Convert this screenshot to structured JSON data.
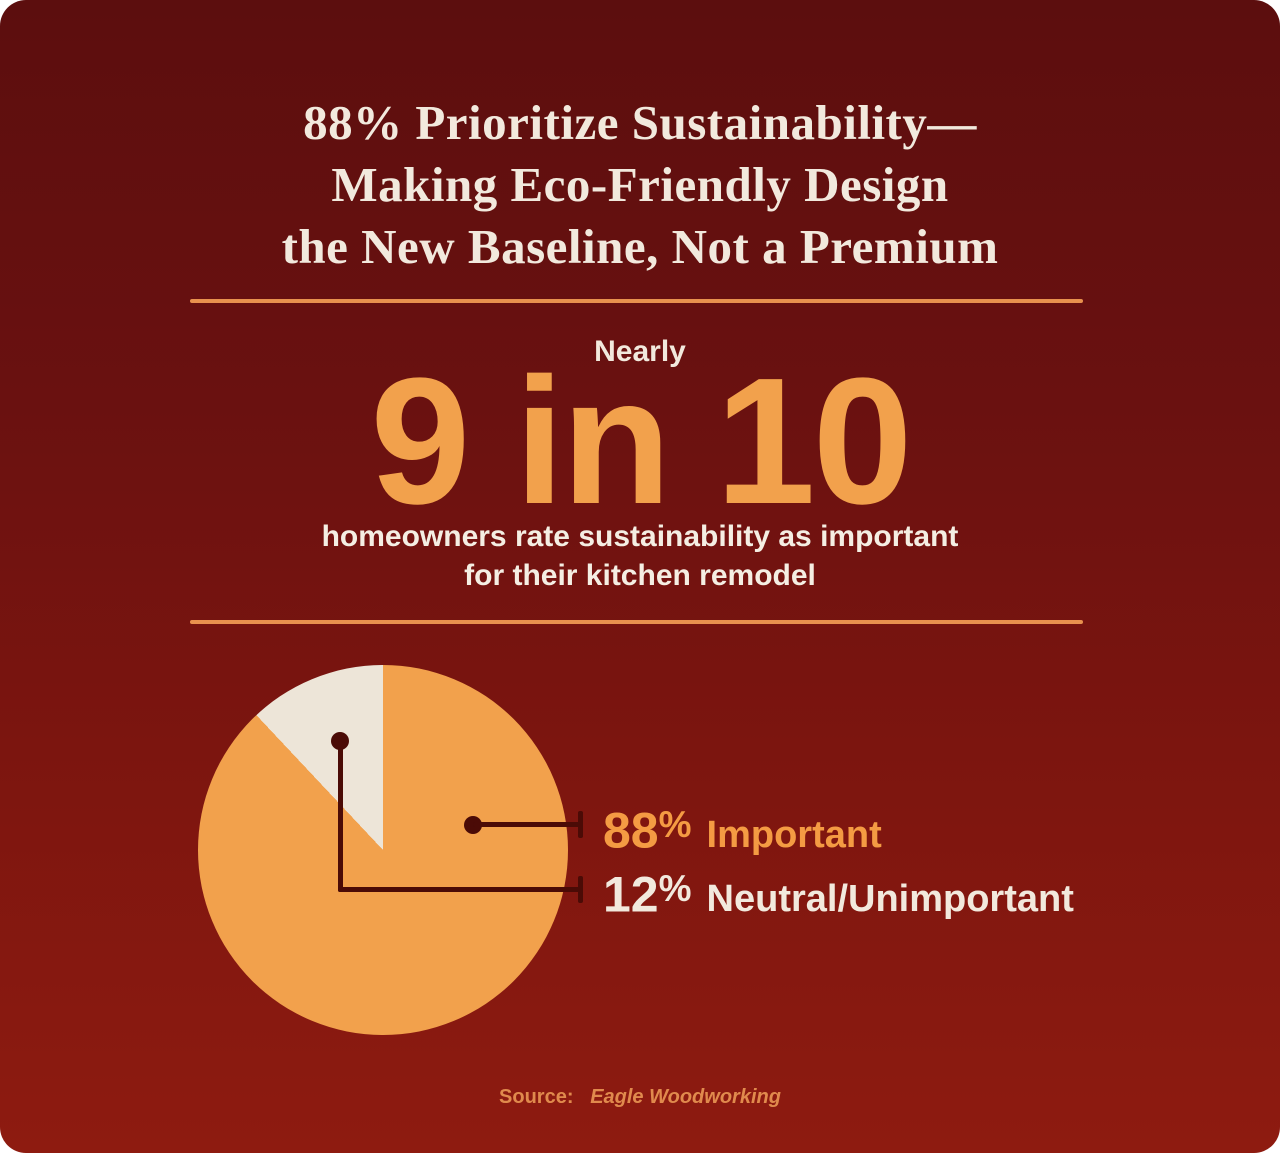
{
  "title": {
    "line1": "88% Prioritize Sustainability—",
    "line2": "Making Eco-Friendly Design",
    "line3": "the New Baseline, Not a Premium"
  },
  "stat": {
    "kicker": "Nearly",
    "big_number": "9 in 10",
    "description_line1": "homeowners rate sustainability as important",
    "description_line2": "for their kitchen remodel"
  },
  "chart_data": {
    "type": "pie",
    "title": "Homeowner rating of sustainability importance for kitchen remodel",
    "slices": [
      {
        "label": "Important",
        "value": 88,
        "color": "#f2a14c"
      },
      {
        "label": "Neutral/Unimportant",
        "value": 12,
        "color": "#ede5d8"
      }
    ],
    "start_angle_deg": 0,
    "direction": "clockwise",
    "legend_position": "right-callouts"
  },
  "callouts": {
    "important": {
      "digits": "88",
      "percent_sign": "%",
      "label": "Important"
    },
    "neutral": {
      "digits": "12",
      "percent_sign": "%",
      "label": "Neutral/Unimportant"
    }
  },
  "source": {
    "prefix": "Source:",
    "name": "Eagle Woodworking"
  },
  "colors": {
    "background_top": "#5c0e0e",
    "background_bottom": "#8e1b10",
    "cream_text": "#f2e9dd",
    "orange_number": "#f2a14c",
    "divider_orange": "#e8914e",
    "pie_orange": "#f2a14c",
    "pie_cream": "#ede5d8",
    "callout_line": "#4b0b06",
    "label_orange": "#f49b43",
    "source_orange": "#e08a4d"
  }
}
